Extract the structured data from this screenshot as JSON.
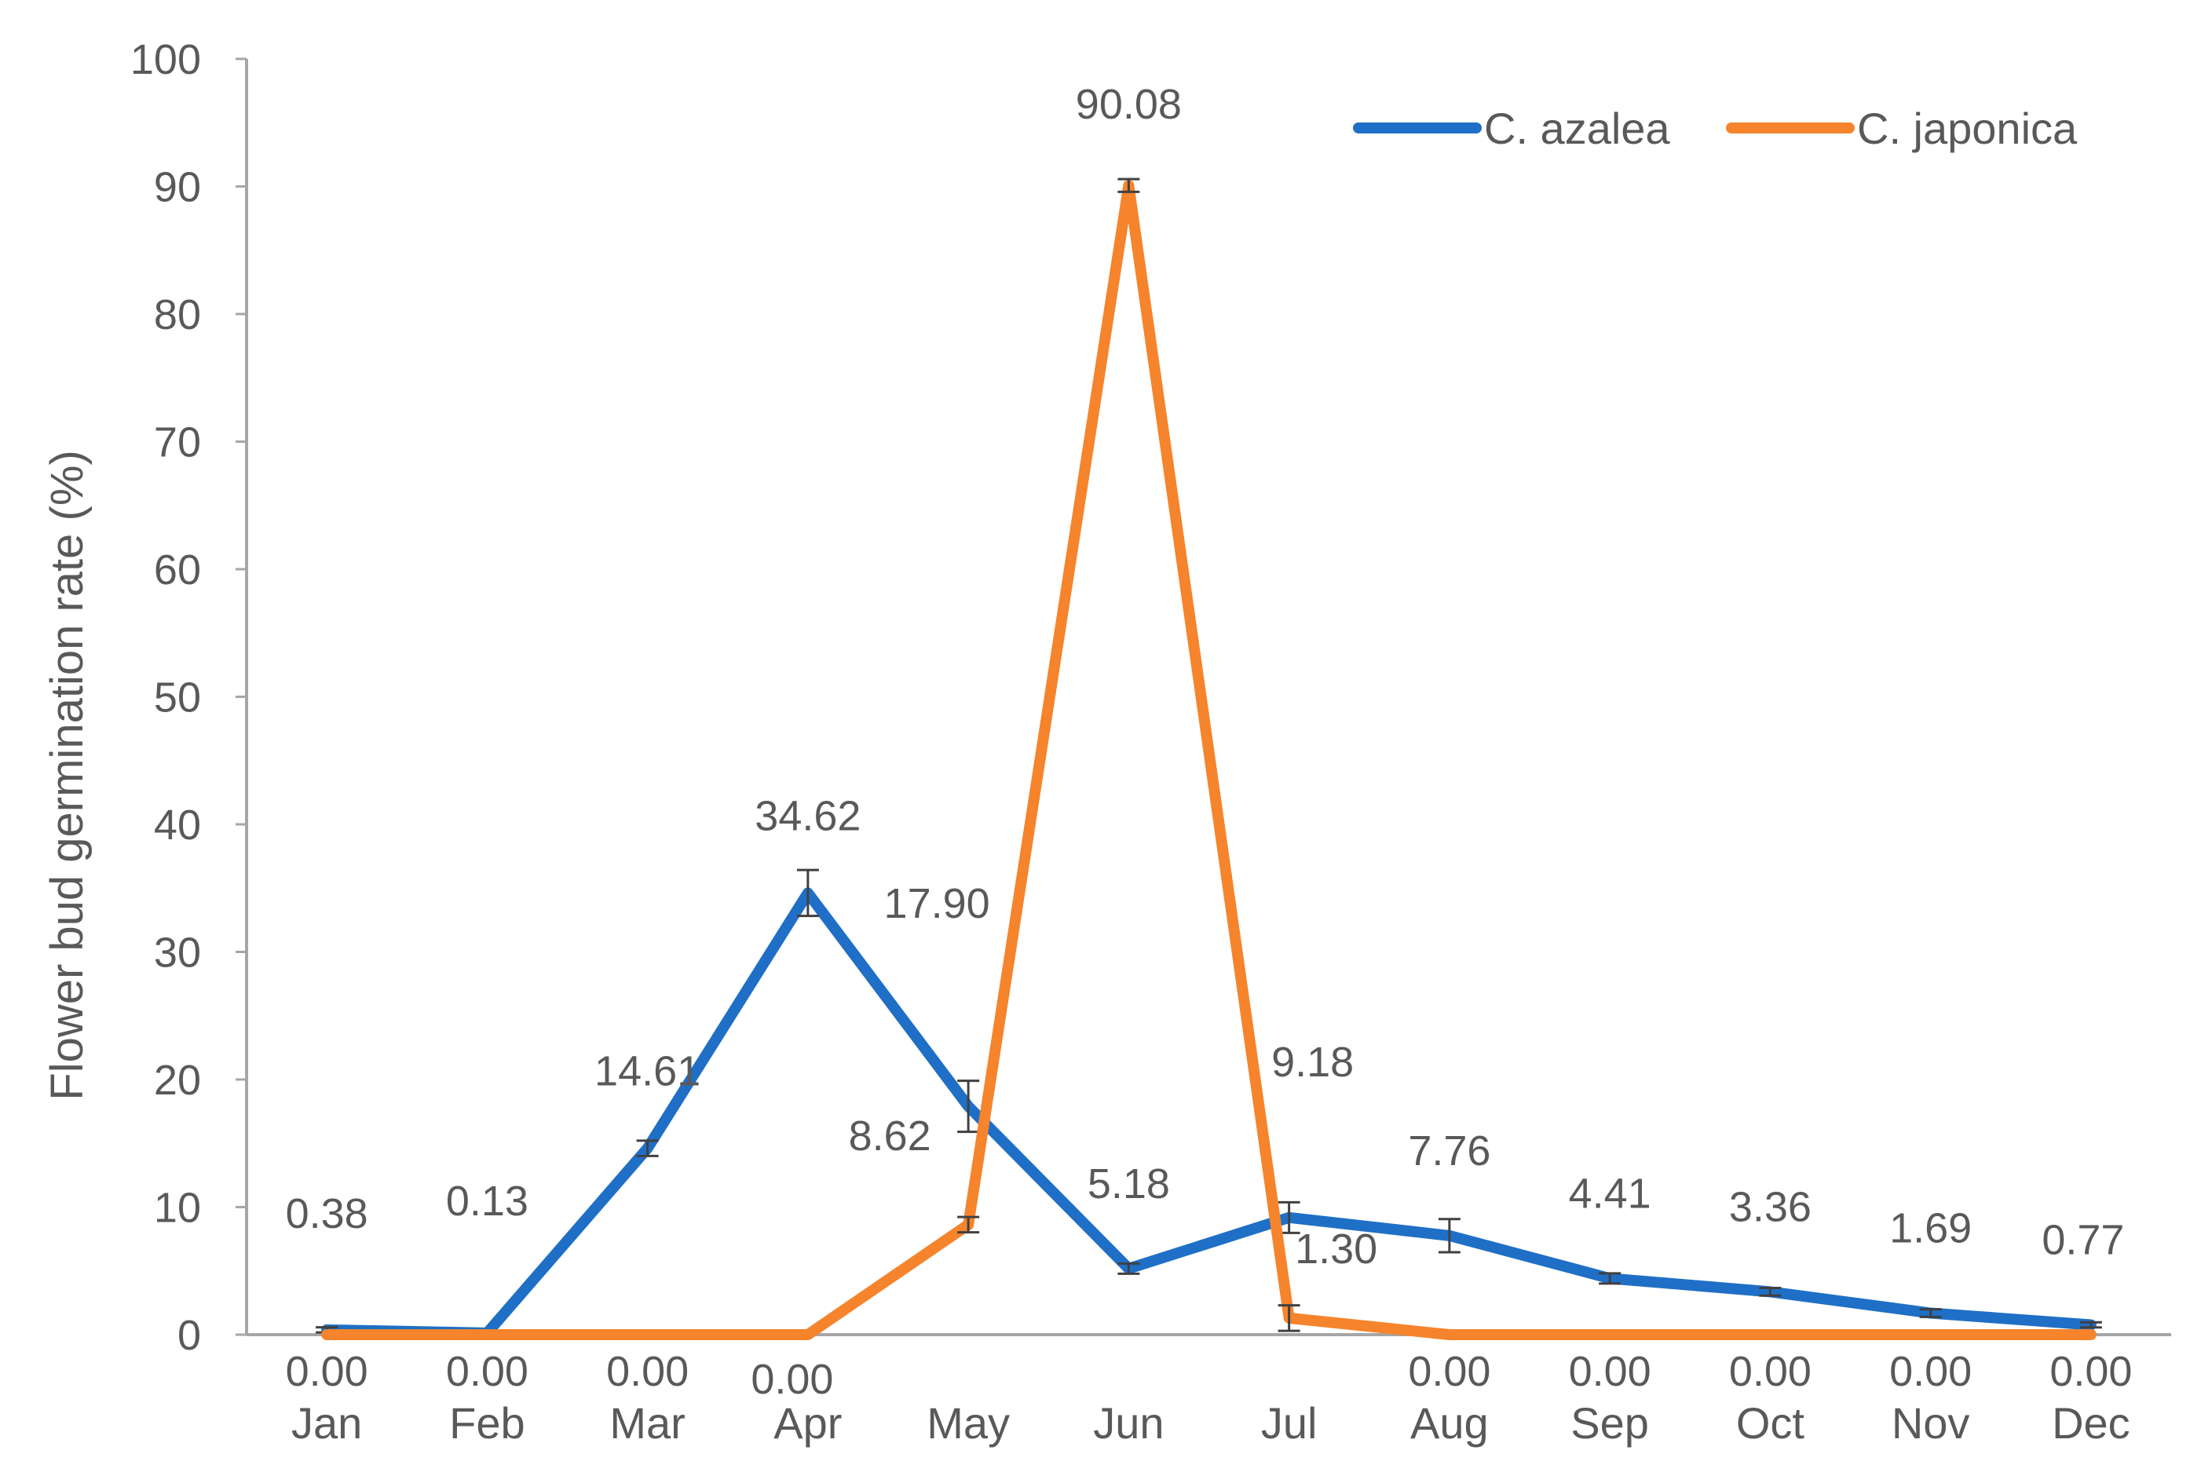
{
  "chart_data": {
    "type": "line",
    "title": "",
    "xlabel": "",
    "ylabel": "Flower bud germination rate (%)",
    "ylim": [
      0,
      100
    ],
    "yticks": [
      0,
      10,
      20,
      30,
      40,
      50,
      60,
      70,
      80,
      90,
      100
    ],
    "categories": [
      "Jan",
      "Feb",
      "Mar",
      "Apr",
      "May",
      "Jun",
      "Jul",
      "Aug",
      "Sep",
      "Oct",
      "Nov",
      "Dec"
    ],
    "grid": false,
    "legend_position": "top-right",
    "series": [
      {
        "name": "C. azalea",
        "color": "#1f6fc6",
        "values": [
          0.38,
          0.13,
          14.61,
          34.62,
          17.9,
          5.18,
          9.18,
          7.76,
          4.41,
          3.36,
          1.69,
          0.77
        ],
        "labels": [
          "0.38",
          "0.13",
          "14.61",
          "34.62",
          "17.90",
          "5.18",
          "9.18",
          "7.76",
          "4.41",
          "3.36",
          "1.69",
          "0.77"
        ],
        "errors": [
          0.2,
          0.1,
          0.6,
          1.8,
          2.0,
          0.4,
          1.2,
          1.3,
          0.4,
          0.3,
          0.3,
          0.2
        ]
      },
      {
        "name": "C. japonica",
        "color": "#f5842c",
        "values": [
          0.0,
          0.0,
          0.0,
          0.0,
          8.62,
          90.08,
          1.3,
          0.0,
          0.0,
          0.0,
          0.0,
          0.0
        ],
        "labels": [
          "0.00",
          "0.00",
          "0.00",
          "0.00",
          "8.62",
          "90.08",
          "1.30",
          "0.00",
          "0.00",
          "0.00",
          "0.00",
          "0.00"
        ],
        "errors": [
          0,
          0,
          0,
          0,
          0.6,
          0.5,
          1.0,
          0,
          0,
          0,
          0,
          0
        ]
      }
    ]
  }
}
